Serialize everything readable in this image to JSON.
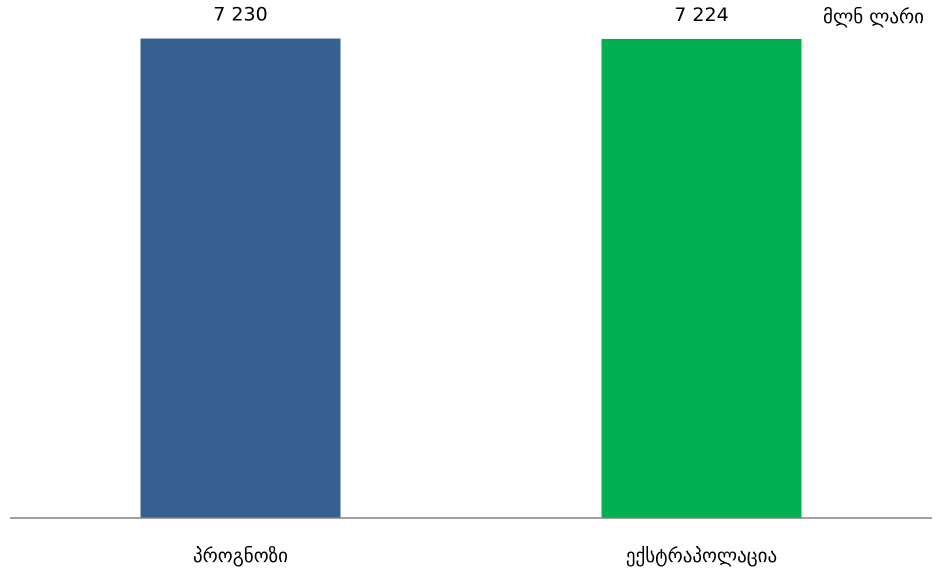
{
  "unit_label": "მლნ ლარი",
  "chart_data": {
    "type": "bar",
    "categories": [
      "პროგნოზი",
      "ექსტრაპოლაცია"
    ],
    "values": [
      7230,
      7224
    ],
    "value_labels": [
      "7 230",
      "7 224"
    ],
    "colors": [
      "#35608F",
      "#00B050"
    ],
    "axis_color": "#808080",
    "ylim": [
      0,
      7600
    ],
    "grid": false,
    "legend": "none"
  }
}
